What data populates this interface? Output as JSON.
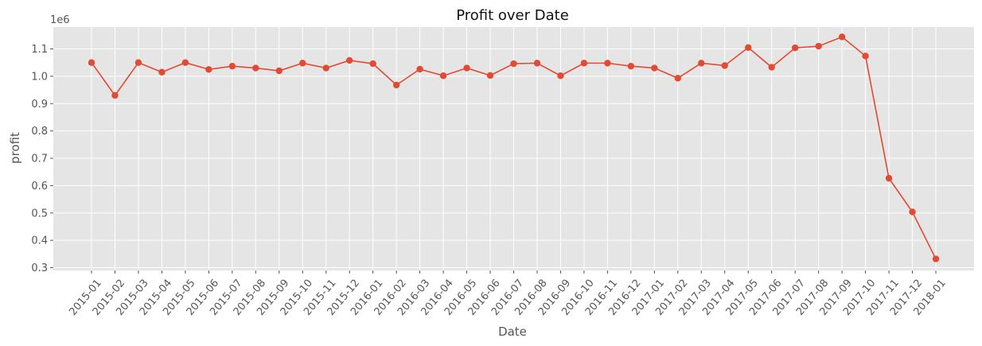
{
  "chart_data": {
    "type": "line",
    "title": "Profit over Date",
    "xlabel": "Date",
    "ylabel": "profit",
    "y_offset_label": "1e6",
    "ylim": [
      0.29,
      1.18
    ],
    "yticks": [
      "0.3",
      "0.4",
      "0.5",
      "0.6",
      "0.7",
      "0.8",
      "0.9",
      "1.0",
      "1.1"
    ],
    "grid": true,
    "marker": "circle",
    "colors": {
      "series": "#e24a33",
      "plot_bg": "#e5e5e5",
      "grid": "#ffffff"
    },
    "categories": [
      "2015-01",
      "2015-02",
      "2015-03",
      "2015-04",
      "2015-05",
      "2015-06",
      "2015-07",
      "2015-08",
      "2015-09",
      "2015-10",
      "2015-11",
      "2015-12",
      "2016-01",
      "2016-02",
      "2016-03",
      "2016-04",
      "2016-05",
      "2016-06",
      "2016-07",
      "2016-08",
      "2016-09",
      "2016-10",
      "2016-11",
      "2016-12",
      "2017-01",
      "2017-02",
      "2017-03",
      "2017-04",
      "2017-05",
      "2017-06",
      "2017-07",
      "2017-08",
      "2017-09",
      "2017-10",
      "2017-11",
      "2017-12",
      "2018-01"
    ],
    "series": [
      {
        "values": [
          1.05,
          0.93,
          1.05,
          1.015,
          1.05,
          1.025,
          1.037,
          1.03,
          1.02,
          1.048,
          1.03,
          1.058,
          1.046,
          0.968,
          1.026,
          1.002,
          1.03,
          1.003,
          1.046,
          1.048,
          1.002,
          1.048,
          1.048,
          1.037,
          1.03,
          0.993,
          1.048,
          1.039,
          1.105,
          1.033,
          1.104,
          1.11,
          1.144,
          1.074,
          0.627,
          0.504,
          0.332
        ]
      }
    ]
  }
}
